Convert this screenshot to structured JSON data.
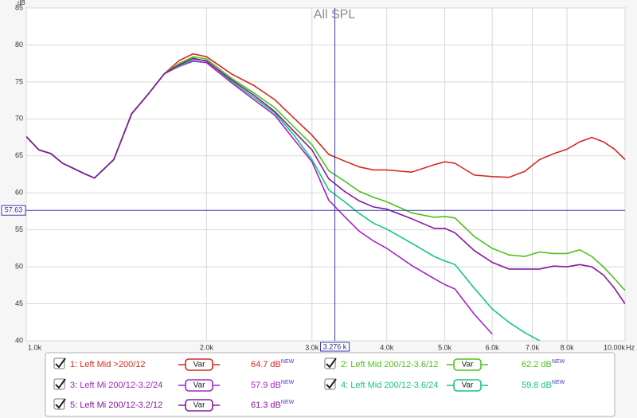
{
  "chart_data": {
    "type": "line",
    "title": "All SPL",
    "ylabel": "dB",
    "xlabel": "Hz",
    "log_x": true,
    "grid": true,
    "xlim": [
      1000,
      10000
    ],
    "ylim": [
      40,
      85
    ],
    "xticks": [
      {
        "value": 1000,
        "label": "1.0k"
      },
      {
        "value": 2000,
        "label": "2.0k"
      },
      {
        "value": 3000,
        "label": "3.0k"
      },
      {
        "value": 4000,
        "label": "4.0k"
      },
      {
        "value": 5000,
        "label": "5.0k"
      },
      {
        "value": 6000,
        "label": "6.0k"
      },
      {
        "value": 7000,
        "label": "7.0k"
      },
      {
        "value": 8000,
        "label": "8.0k"
      },
      {
        "value": 10000,
        "label": "10.00k"
      }
    ],
    "yticks": [
      40,
      45,
      50,
      55,
      60,
      65,
      70,
      75,
      80,
      85
    ],
    "cursor": {
      "x": {
        "value": 3276,
        "label": "3.276 k"
      },
      "y": 57.63
    },
    "legend_button": "Var",
    "legend_badge": "NEW",
    "x": [
      1000,
      1050,
      1100,
      1150,
      1200,
      1250,
      1300,
      1400,
      1500,
      1600,
      1700,
      1800,
      1900,
      2000,
      2200,
      2400,
      2600,
      2800,
      3000,
      3200,
      3400,
      3600,
      3800,
      4000,
      4400,
      4800,
      5000,
      5200,
      5600,
      6000,
      6400,
      6800,
      7200,
      7600,
      8000,
      8400,
      8800,
      9200,
      9600,
      10000
    ],
    "series": [
      {
        "name": "1: Left Mid >200/12",
        "color": "#d42a20",
        "cursor_value": 64.7,
        "values": [
          67.6,
          65.8,
          65.3,
          64.0,
          63.3,
          62.6,
          62.0,
          64.5,
          70.7,
          73.4,
          76.1,
          77.9,
          78.8,
          78.4,
          76.1,
          74.5,
          72.6,
          70.1,
          67.8,
          65.2,
          64.3,
          63.5,
          63.1,
          63.1,
          62.8,
          63.8,
          64.2,
          64.0,
          62.4,
          62.2,
          62.1,
          62.9,
          64.5,
          65.3,
          65.9,
          66.9,
          67.5,
          66.9,
          65.9,
          64.5
        ]
      },
      {
        "name": "2: Left Mid 200/12-3.6/12",
        "color": "#4cc21c",
        "cursor_value": 62.2,
        "values": [
          67.6,
          65.8,
          65.3,
          64.0,
          63.3,
          62.6,
          62.0,
          64.5,
          70.7,
          73.4,
          76.1,
          77.5,
          78.4,
          78.1,
          75.5,
          73.5,
          71.5,
          68.9,
          66.5,
          63.0,
          61.6,
          60.2,
          59.4,
          58.8,
          57.3,
          56.7,
          56.8,
          56.6,
          54.1,
          52.5,
          51.6,
          51.4,
          52.0,
          51.8,
          51.8,
          52.3,
          51.4,
          50.0,
          48.4,
          46.8
        ]
      },
      {
        "name": "3: Left Mi 200/12-3.2/24",
        "color": "#a424c8",
        "cursor_value": 57.9,
        "values": [
          67.6,
          65.8,
          65.3,
          64.0,
          63.3,
          62.6,
          62.0,
          64.5,
          70.7,
          73.4,
          76.1,
          77.1,
          77.8,
          77.6,
          74.9,
          72.6,
          70.5,
          67.2,
          64.2,
          59.0,
          56.8,
          54.8,
          53.5,
          52.5,
          50.2,
          48.4,
          47.6,
          47.0,
          43.6,
          40.9,
          null,
          null,
          null,
          null,
          null,
          null,
          null,
          null,
          null,
          null
        ]
      },
      {
        "name": "4: Left Mid 200/12-3.6/24",
        "color": "#14c87c",
        "cursor_value": 59.8,
        "values": [
          67.6,
          65.8,
          65.3,
          64.0,
          63.3,
          62.6,
          62.0,
          64.5,
          70.7,
          73.4,
          76.1,
          77.2,
          78.0,
          77.9,
          75.1,
          72.9,
          70.8,
          67.8,
          64.5,
          60.4,
          58.8,
          57.2,
          55.9,
          55.1,
          53.2,
          51.4,
          50.8,
          50.3,
          47.1,
          44.3,
          42.5,
          41.1,
          40.0,
          null,
          null,
          null,
          null,
          null,
          null,
          null
        ]
      },
      {
        "name": "5: Left Mi 200/12-3.2/12",
        "color": "#86189c",
        "cursor_value": 61.3,
        "values": [
          67.6,
          65.8,
          65.3,
          64.0,
          63.3,
          62.6,
          62.0,
          64.5,
          70.7,
          73.4,
          76.1,
          77.3,
          78.2,
          77.8,
          75.3,
          73.2,
          71.0,
          68.3,
          65.8,
          61.9,
          60.2,
          58.9,
          58.1,
          57.8,
          56.5,
          55.2,
          55.2,
          54.6,
          52.2,
          50.6,
          49.7,
          49.7,
          49.7,
          50.1,
          50.0,
          50.3,
          50.0,
          48.9,
          47.1,
          45.0
        ]
      }
    ]
  }
}
